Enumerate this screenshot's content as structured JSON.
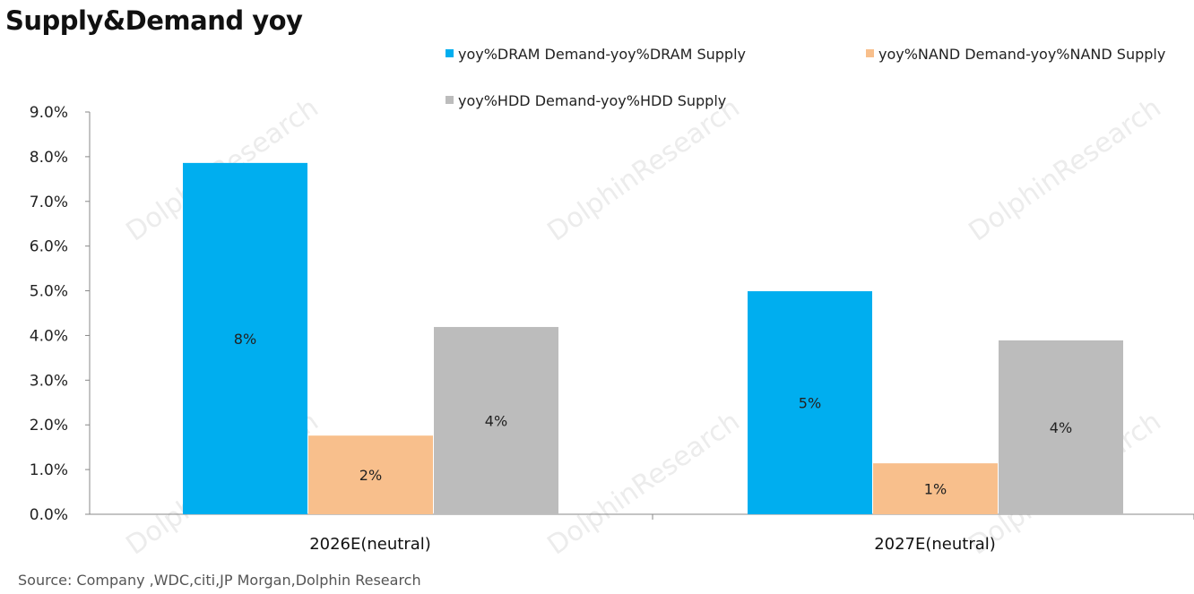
{
  "chart_data": {
    "type": "bar",
    "title": "Supply&Demand yoy",
    "categories": [
      "2026E(neutral)",
      "2027E(neutral)"
    ],
    "series": [
      {
        "name": "yoy%DRAM Demand-yoy%DRAM Supply",
        "color": "#00aeef",
        "values": [
          7.86,
          4.99
        ],
        "labels": [
          "8%",
          "5%"
        ]
      },
      {
        "name": "yoy%NAND Demand-yoy%NAND Supply",
        "color": "#f8bf8c",
        "values": [
          1.76,
          1.14
        ],
        "labels": [
          "2%",
          "1%"
        ]
      },
      {
        "name": "yoy%HDD Demand-yoy%HDD Supply",
        "color": "#bcbcbc",
        "values": [
          4.19,
          3.89
        ],
        "labels": [
          "4%",
          "4%"
        ]
      }
    ],
    "ylim": [
      0,
      9
    ],
    "yticks": [
      "0.0%",
      "1.0%",
      "2.0%",
      "3.0%",
      "4.0%",
      "5.0%",
      "6.0%",
      "7.0%",
      "8.0%",
      "9.0%"
    ],
    "xlabel": "",
    "ylabel": "",
    "grid": false,
    "legend": "top-right"
  },
  "source": "Source:  Company ,WDC,citi,JP  Morgan,Dolphin  Research",
  "watermark": "DolphinResearch"
}
